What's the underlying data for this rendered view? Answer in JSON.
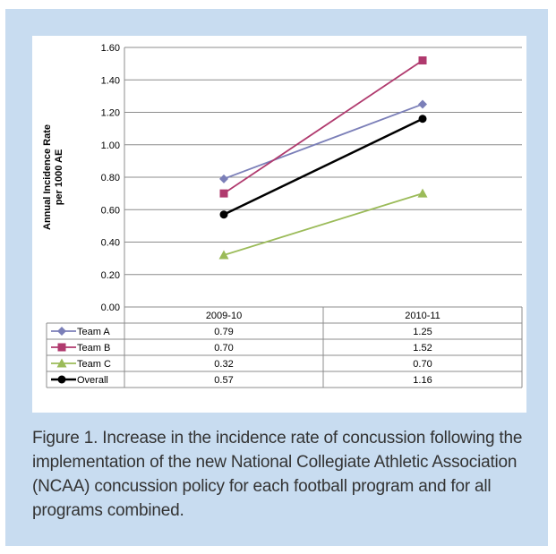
{
  "caption": "Figure 1. Increase in the incidence rate of concussion following the implementation of the new National Collegiate Athletic Association (NCAA) concussion policy for each football program and for all programs combined.",
  "chart_data": {
    "type": "line",
    "ylabel": "Annual Incidence Rate per 1000 AE",
    "ylabel_lines": [
      "Annual Incidence Rate",
      "per 1000 AE"
    ],
    "xlabel": "",
    "categories": [
      "2009-10",
      "2010-11"
    ],
    "ylim": [
      0,
      1.6
    ],
    "yticks": [
      "0.00",
      "0.20",
      "0.40",
      "0.60",
      "0.80",
      "1.00",
      "1.20",
      "1.40",
      "1.60"
    ],
    "ytick_values": [
      0,
      0.2,
      0.4,
      0.6,
      0.8,
      1.0,
      1.2,
      1.4,
      1.6
    ],
    "grid": true,
    "legend": "data-table",
    "series": [
      {
        "name": "Team A",
        "values": [
          0.79,
          1.25
        ],
        "labels": [
          "0.79",
          "1.25"
        ],
        "color": "#7b7fb8",
        "marker": "diamond"
      },
      {
        "name": "Team B",
        "values": [
          0.7,
          1.52
        ],
        "labels": [
          "0.70",
          "1.52"
        ],
        "color": "#b03a6e",
        "marker": "square"
      },
      {
        "name": "Team C",
        "values": [
          0.32,
          0.7
        ],
        "labels": [
          "0.32",
          "0.70"
        ],
        "color": "#9bbb59",
        "marker": "triangle"
      },
      {
        "name": "Overall",
        "values": [
          0.57,
          1.16
        ],
        "labels": [
          "0.57",
          "1.16"
        ],
        "color": "#000000",
        "marker": "circle"
      }
    ]
  }
}
